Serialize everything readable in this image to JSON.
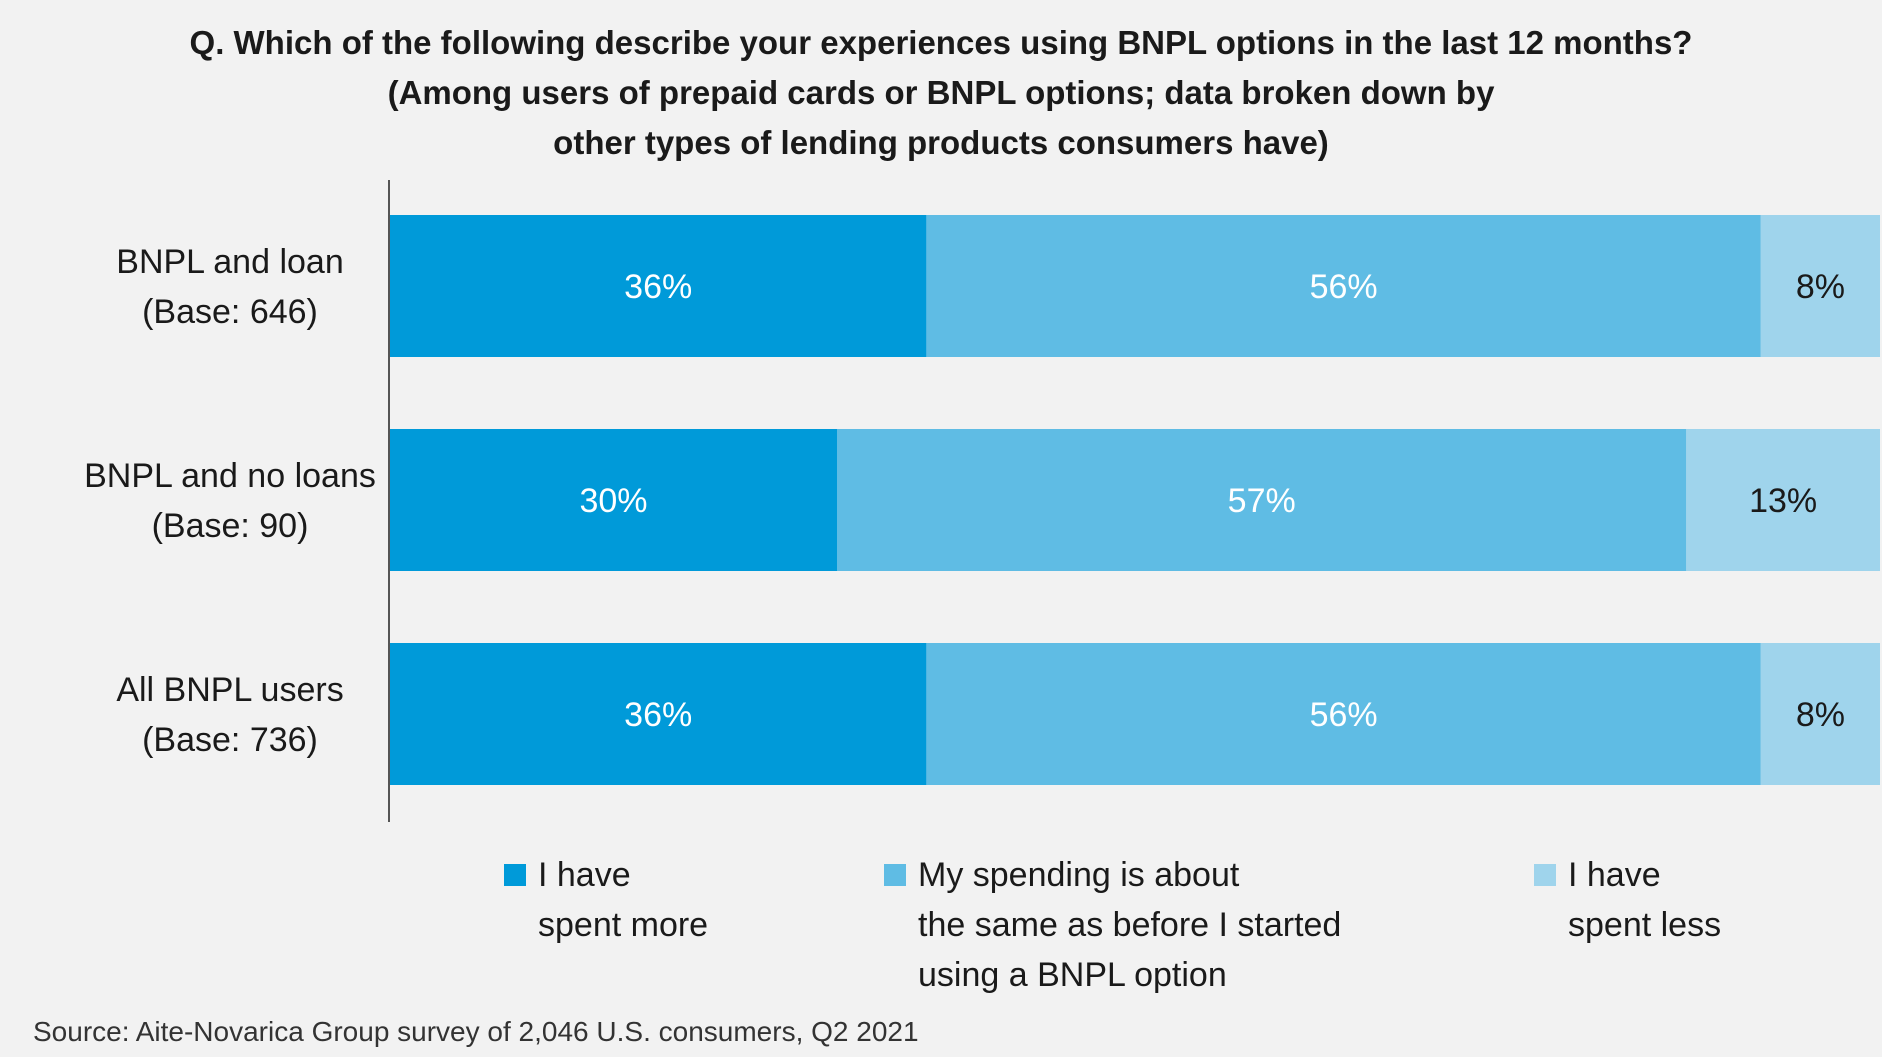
{
  "title_lines": [
    "Q. Which of the following describe your experiences using BNPL options in the last 12 months?",
    "(Among users of prepaid cards or BNPL options; data broken down by",
    "other types of lending products consumers have)"
  ],
  "source": "Source: Aite-Novarica Group survey of 2,046 U.S. consumers, Q2 2021",
  "colors": {
    "spent_more": "#009ad9",
    "same": "#5fbce4",
    "spent_less": "#9fd4ec",
    "axis": "#555555"
  },
  "legend": [
    {
      "lines": [
        "I have",
        "spent more"
      ],
      "color": "#009ad9"
    },
    {
      "lines": [
        "My spending is about",
        "the same as before I started",
        "using a BNPL option"
      ],
      "color": "#5fbce4"
    },
    {
      "lines": [
        "I have",
        "spent less"
      ],
      "color": "#9fd4ec"
    }
  ],
  "chart_data": {
    "type": "bar",
    "orientation": "horizontal",
    "stacked": true,
    "categories": [
      [
        "BNPL and loan",
        "(Base: 646)"
      ],
      [
        "BNPL and no loans",
        "(Base: 90)"
      ],
      [
        "All BNPL users",
        "(Base: 736)"
      ]
    ],
    "series": [
      {
        "name": "I have spent more",
        "values": [
          36,
          30,
          36
        ],
        "labels": [
          "36%",
          "30%",
          "36%"
        ],
        "color": "#009ad9",
        "label_color": "#ffffff"
      },
      {
        "name": "My spending is about the same as before I started using a BNPL option",
        "values": [
          56,
          57,
          56
        ],
        "labels": [
          "56%",
          "57%",
          "56%"
        ],
        "color": "#5fbce4",
        "label_color": "#ffffff"
      },
      {
        "name": "I have spent less",
        "values": [
          8,
          13,
          8
        ],
        "labels": [
          "8%",
          "13%",
          "8%"
        ],
        "color": "#9fd4ec",
        "label_color": "#1a1a1a"
      }
    ],
    "xlim": [
      0,
      100
    ],
    "grid": false,
    "legend_position": "bottom"
  }
}
